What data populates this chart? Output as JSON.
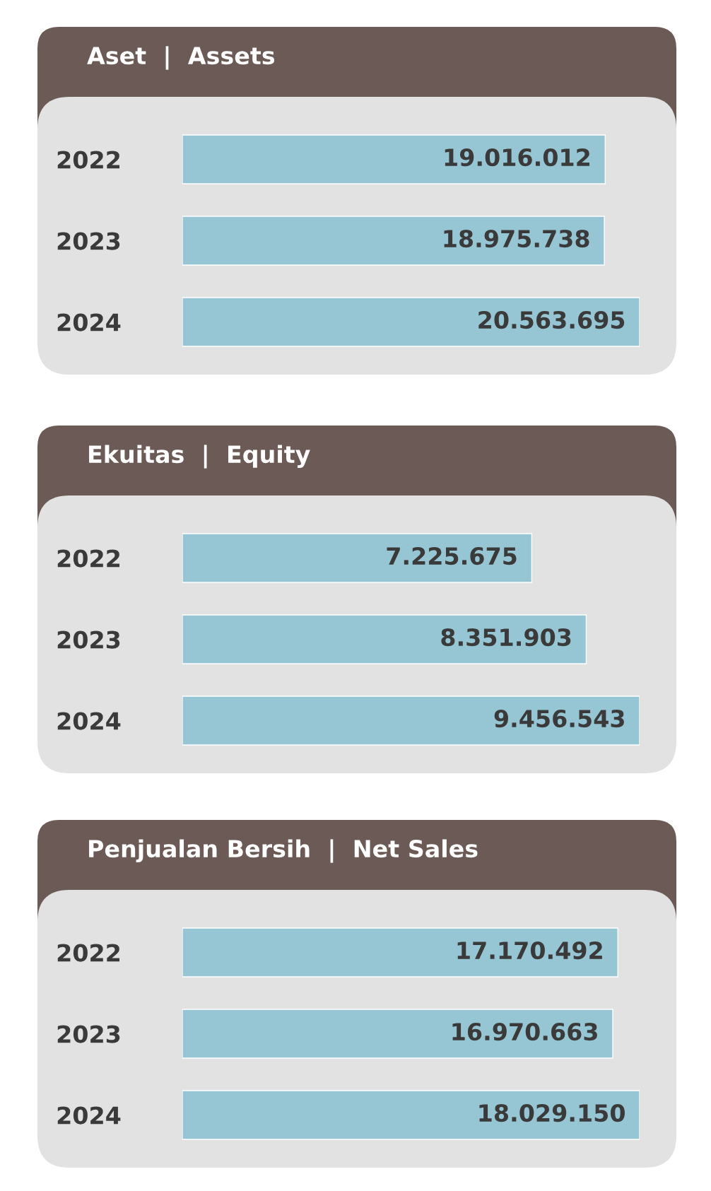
{
  "chart_data": [
    {
      "type": "bar",
      "orientation": "horizontal",
      "title": "Aset  |  Assets",
      "categories": [
        "2022",
        "2023",
        "2024"
      ],
      "values": [
        19016012,
        18975738,
        20563695
      ],
      "value_labels": [
        "19.016.012",
        "18.975.738",
        "20.563.695"
      ],
      "color": "#96c6d3",
      "tick_labels": "y",
      "grid": false,
      "legend": false
    },
    {
      "type": "bar",
      "orientation": "horizontal",
      "title": "Ekuitas  |  Equity",
      "categories": [
        "2022",
        "2023",
        "2024"
      ],
      "values": [
        7225675,
        8351903,
        9456543
      ],
      "value_labels": [
        "7.225.675",
        "8.351.903",
        "9.456.543"
      ],
      "color": "#96c6d3",
      "tick_labels": "y",
      "grid": false,
      "legend": false
    },
    {
      "type": "bar",
      "orientation": "horizontal",
      "title": "Penjualan Bersih  |  Net Sales",
      "categories": [
        "2022",
        "2023",
        "2024"
      ],
      "values": [
        17170492,
        16970663,
        18029150
      ],
      "value_labels": [
        "17.170.492",
        "16.970.663",
        "18.029.150"
      ],
      "color": "#96c6d3",
      "tick_labels": "y",
      "grid": false,
      "legend": false
    }
  ]
}
